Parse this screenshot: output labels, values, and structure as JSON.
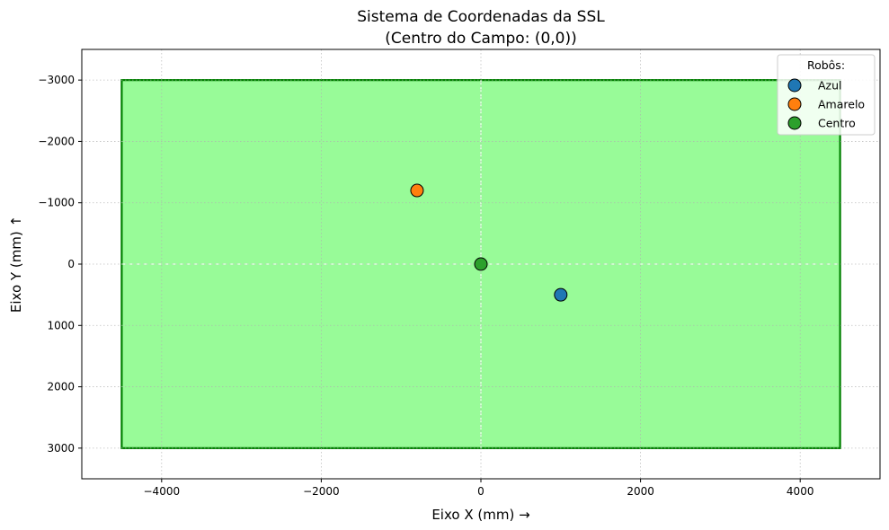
{
  "chart_data": {
    "type": "scatter",
    "title": "Sistema de Coordenadas da SSL",
    "subtitle": "(Centro do Campo: (0,0))",
    "xlabel": "Eixo X (mm) →",
    "ylabel": "Eixo Y (mm) ↑",
    "xlim": [
      -5000,
      5000
    ],
    "ylim": [
      -3500,
      3500
    ],
    "y_inverted": true,
    "grid": true,
    "x_ticks": [
      -4000,
      -2000,
      0,
      2000,
      4000
    ],
    "x_tick_labels": [
      "−4000",
      "−2000",
      "0",
      "2000",
      "4000"
    ],
    "y_ticks": [
      -3000,
      -2000,
      -1000,
      0,
      1000,
      2000,
      3000
    ],
    "y_tick_labels": [
      "−3000",
      "−2000",
      "−1000",
      "0",
      "1000",
      "2000",
      "3000"
    ],
    "field": {
      "x_range": [
        -4500,
        4500
      ],
      "y_range": [
        -3000,
        3000
      ],
      "fill_color": "#98fb98",
      "border_color": "#008000"
    },
    "legend": {
      "title": "Robôs:",
      "placement": "top-right"
    },
    "series": [
      {
        "name": "Azul",
        "x": [
          1000
        ],
        "y": [
          500
        ],
        "color": "#1f77b4"
      },
      {
        "name": "Amarelo",
        "x": [
          -800
        ],
        "y": [
          -1200
        ],
        "color": "#ff7f0e"
      },
      {
        "name": "Centro",
        "x": [
          0
        ],
        "y": [
          0
        ],
        "color": "#2ca02c"
      }
    ]
  }
}
